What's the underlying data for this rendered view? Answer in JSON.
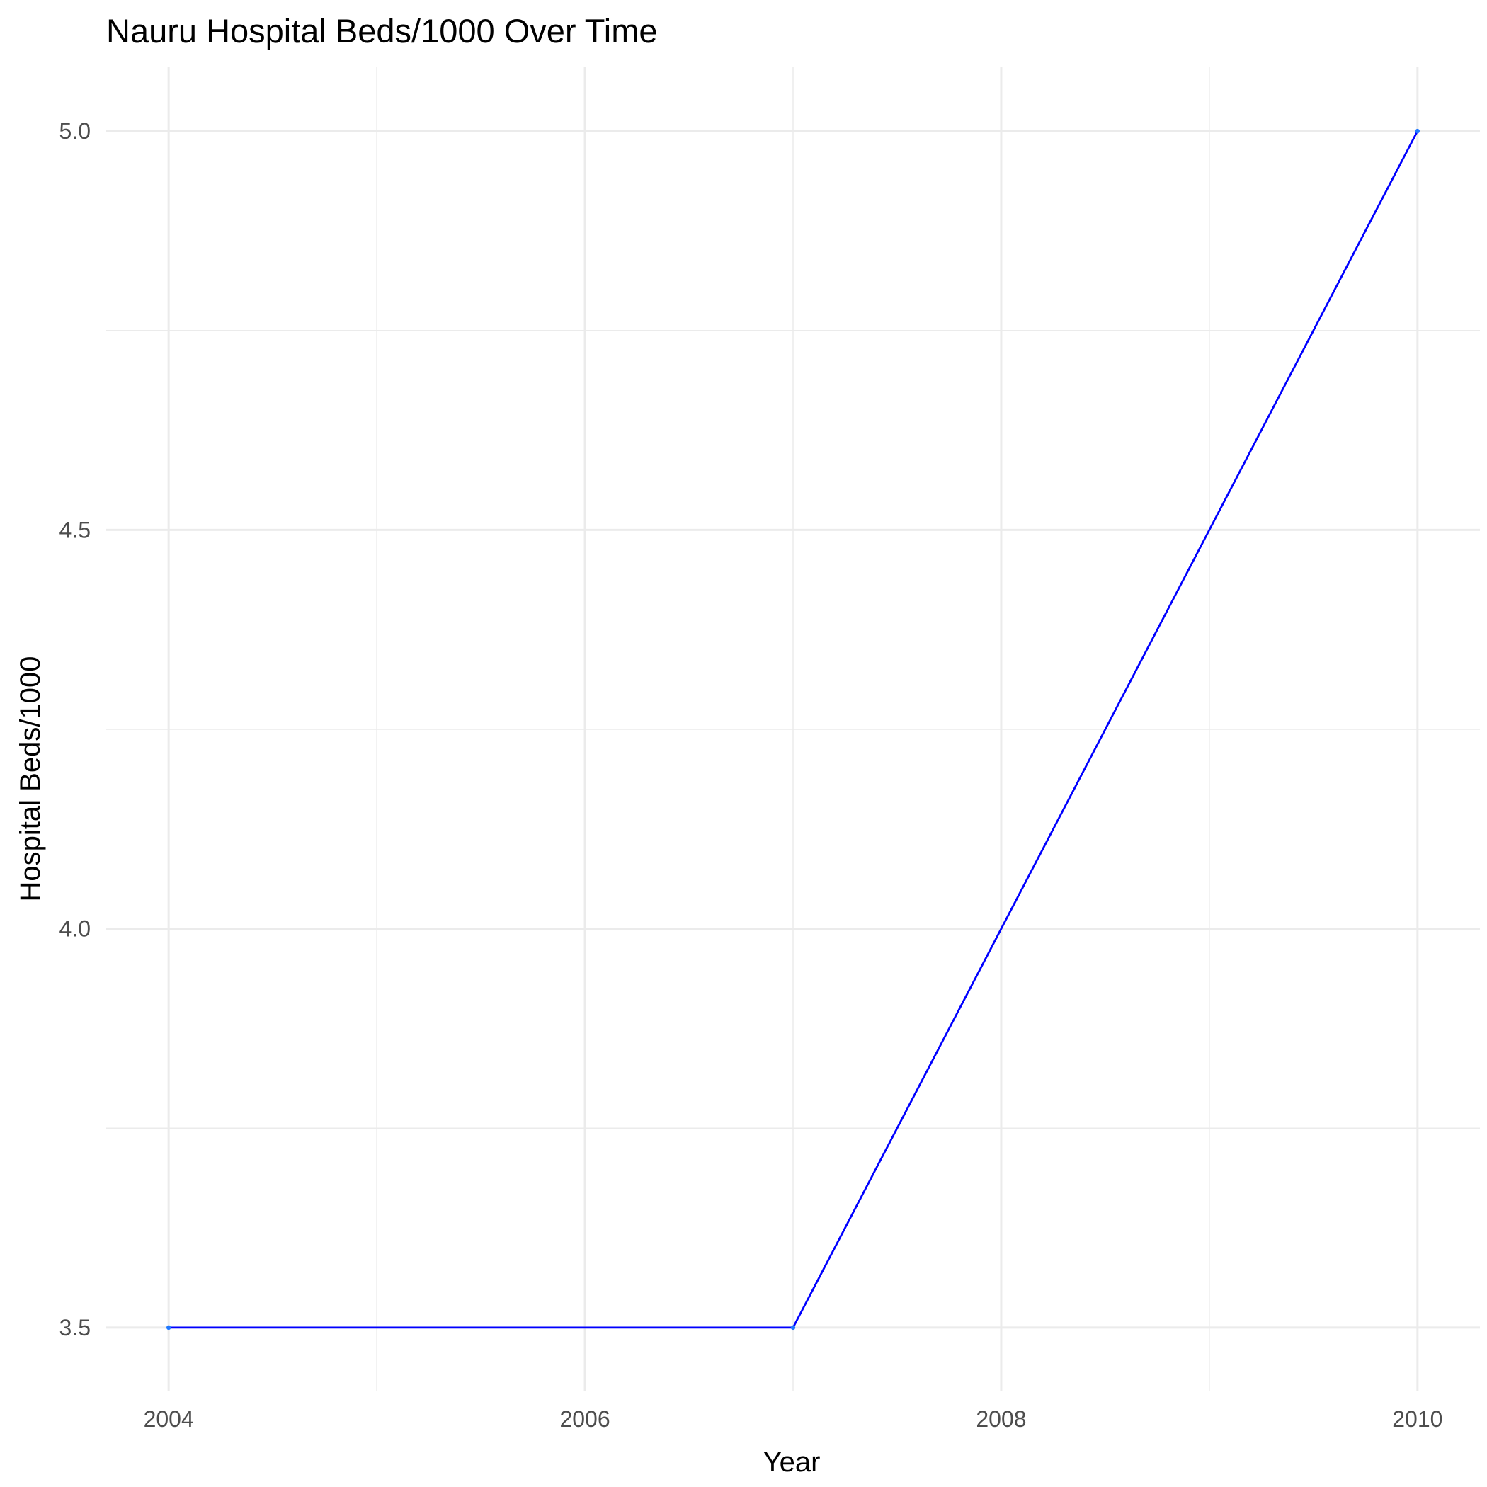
{
  "chart_data": {
    "type": "line",
    "title": "Nauru Hospital Beds/1000 Over Time",
    "xlabel": "Year",
    "ylabel": "Hospital Beds/1000",
    "x": [
      2004,
      2007,
      2010
    ],
    "series": [
      {
        "values": [
          3.5,
          3.5,
          5.0
        ],
        "color": "#0000ff",
        "point_color": "#1f78ff"
      }
    ],
    "xlim": [
      2003.7,
      2010.3
    ],
    "ylim": [
      3.42,
      5.08
    ],
    "x_ticks": [
      2004,
      2006,
      2008,
      2010
    ],
    "x_tick_labels": [
      "2004",
      "2006",
      "2008",
      "2010"
    ],
    "x_minor_ticks": [
      2005,
      2007,
      2009
    ],
    "y_ticks": [
      3.5,
      4.0,
      4.5,
      5.0
    ],
    "y_tick_labels": [
      "3.5",
      "4.0",
      "4.5",
      "5.0"
    ],
    "y_minor_ticks": [
      3.75,
      4.25,
      4.75
    ],
    "grid": true,
    "legend": "none",
    "background_color": "#ffffff",
    "grid_color": "#ebebeb"
  }
}
